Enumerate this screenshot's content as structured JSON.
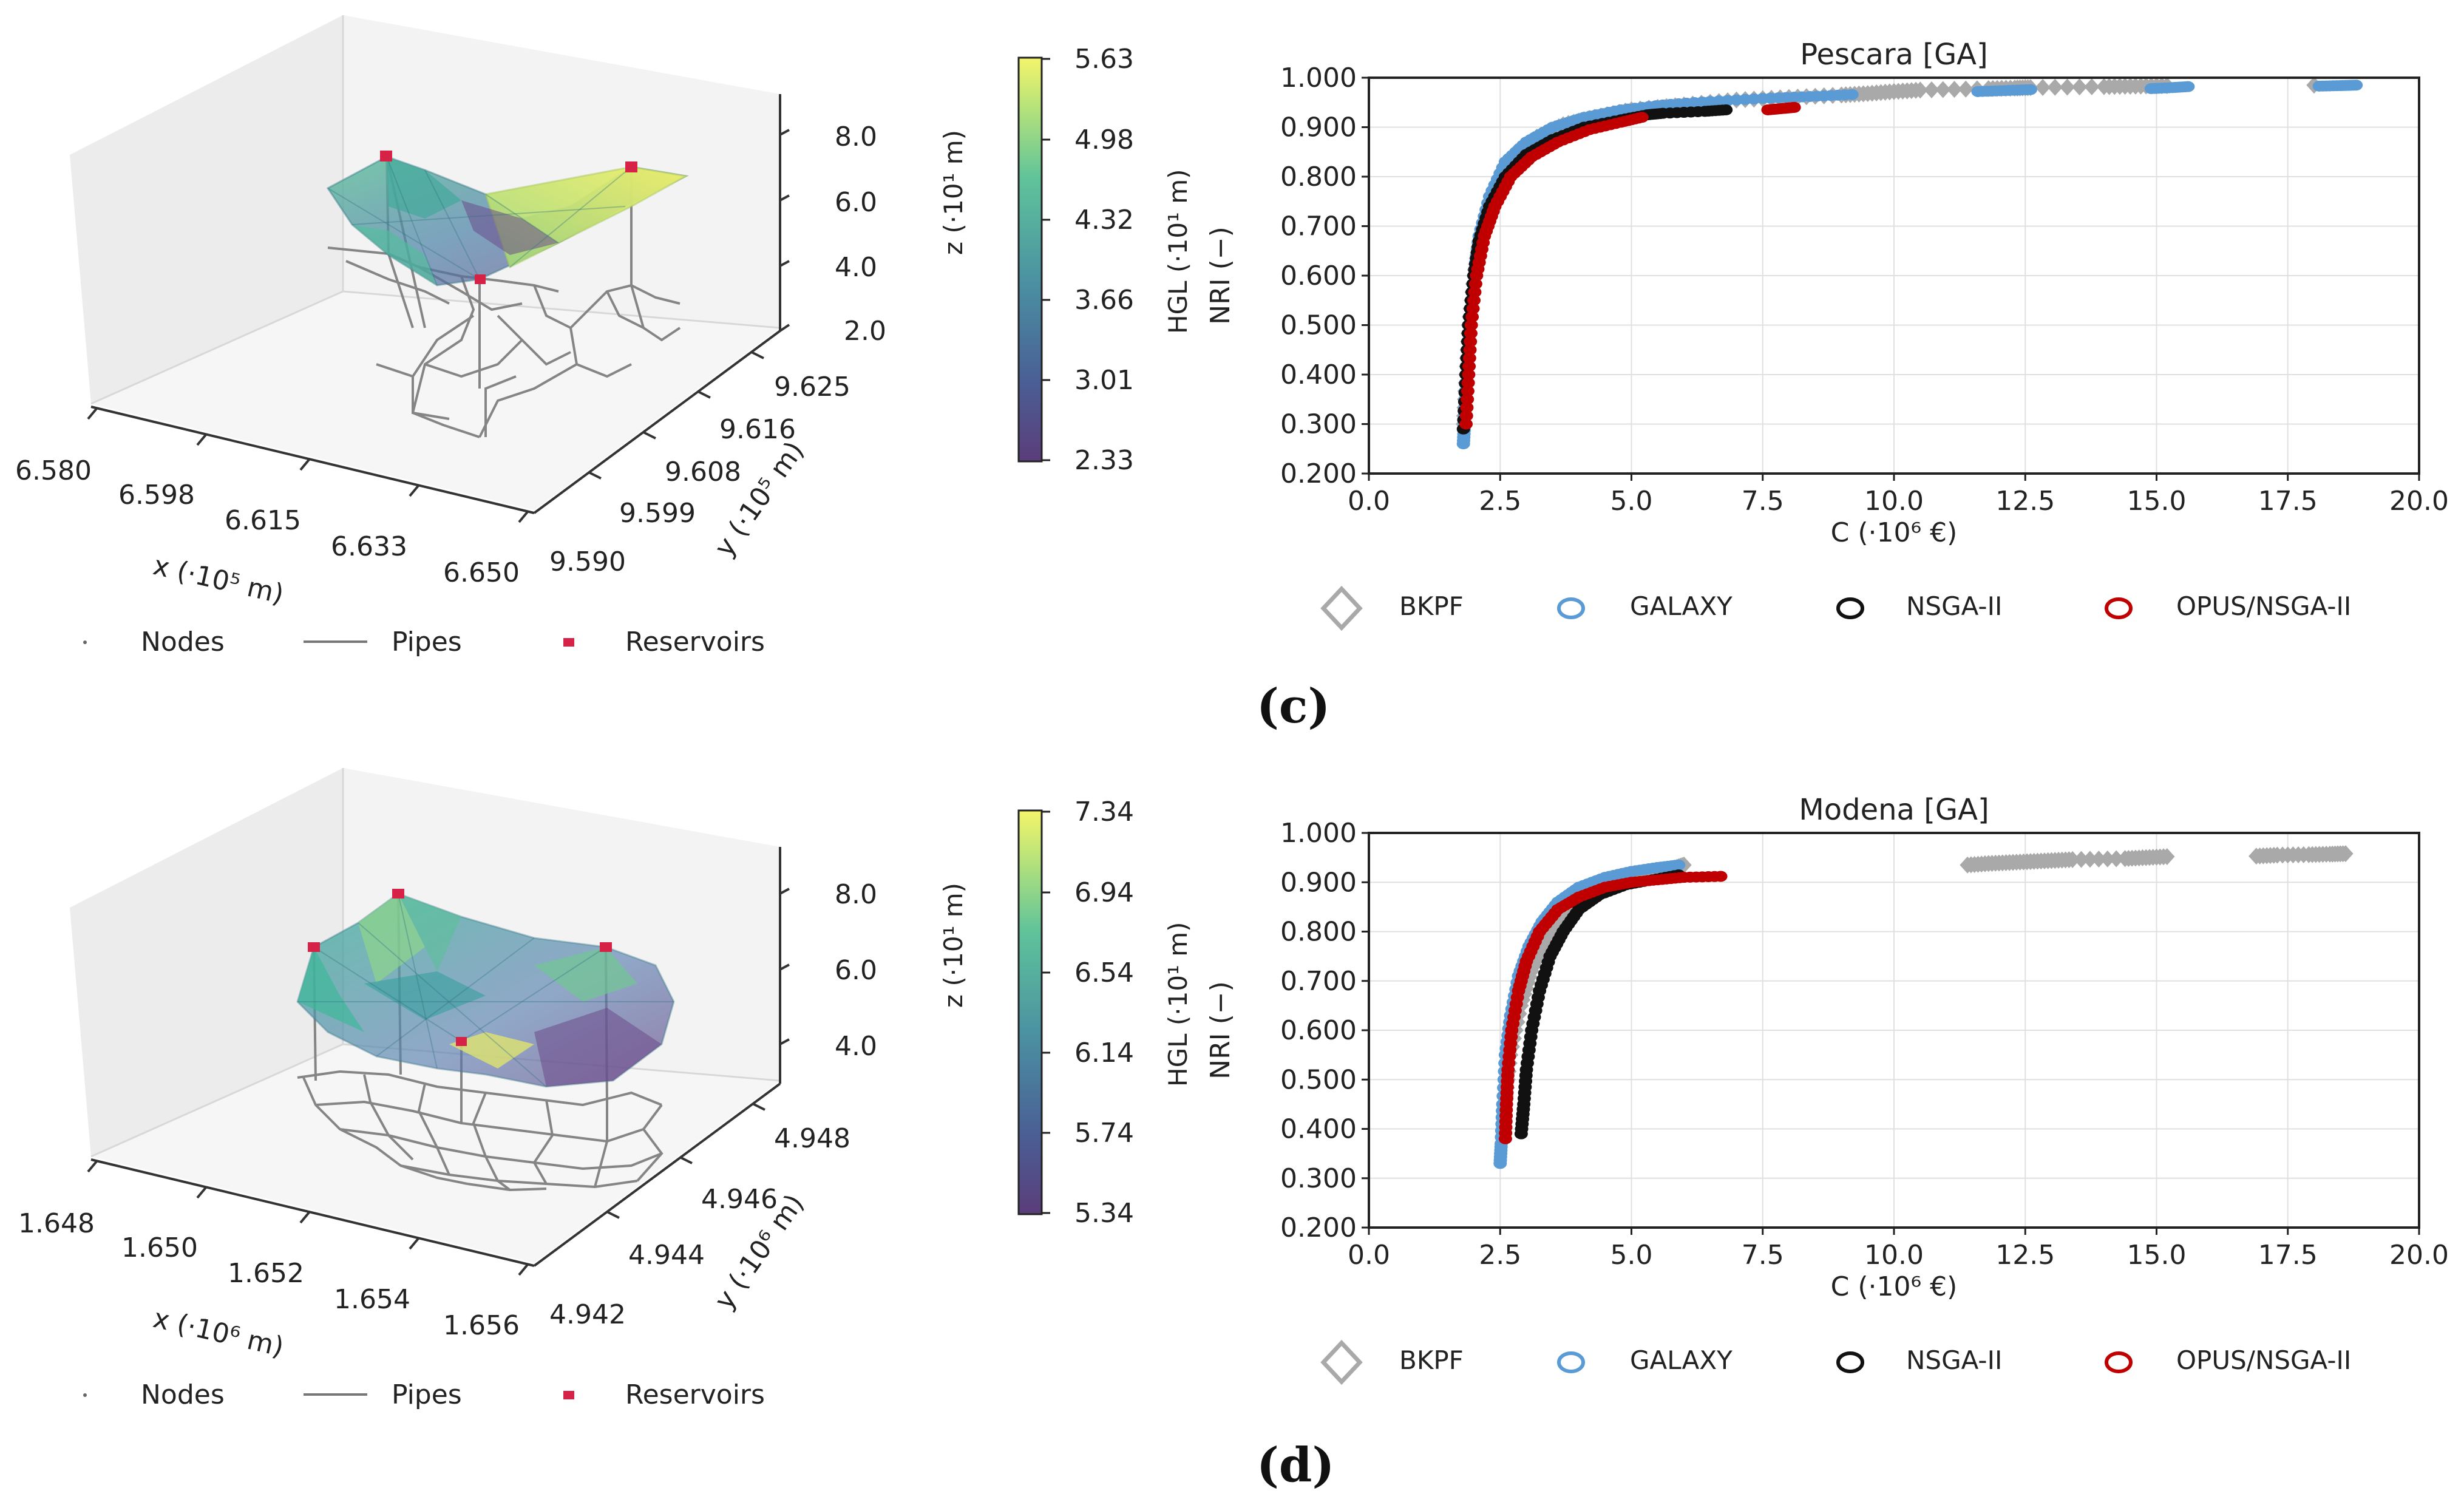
{
  "colors": {
    "bkpf": "#a9a9a9",
    "galaxy": "#5b9bd5",
    "nsga": "#111111",
    "opus": "#c00000",
    "reservoir": "#d62246",
    "pipe": "#808080",
    "viridis_low": "#44306e",
    "viridis_mid": "#21918c",
    "viridis_high": "#f4f46a"
  },
  "legend_3d": {
    "nodes": "Nodes",
    "pipes": "Pipes",
    "reservoirs": "Reservoirs"
  },
  "legend_pareto": {
    "bkpf": "BKPF",
    "galaxy": "GALAXY",
    "nsga": "NSGA-II",
    "opus": "OPUS/NSGA-II"
  },
  "top": {
    "panel_label": "(c)",
    "network": {
      "x_label": "x (·10⁵ m)",
      "y_label": "y (·10⁵ m)",
      "z_label": "z (·10¹ m)",
      "x_ticks": [
        "6.580",
        "6.598",
        "6.615",
        "6.633",
        "6.650"
      ],
      "y_ticks": [
        "9.590",
        "9.599",
        "9.608",
        "9.616",
        "9.625"
      ],
      "z_ticks": [
        "2.0",
        "4.0",
        "6.0",
        "8.0"
      ]
    },
    "colorbar": {
      "label": "HGL (·10¹ m)",
      "ticks": [
        "5.63",
        "4.98",
        "4.32",
        "3.66",
        "3.01",
        "2.33"
      ]
    }
  },
  "bottom": {
    "panel_label": "(d)",
    "network": {
      "x_label": "x (·10⁶ m)",
      "y_label": "y (·10⁶ m)",
      "z_label": "z (·10¹ m)",
      "x_ticks": [
        "1.648",
        "1.650",
        "1.652",
        "1.654",
        "1.656"
      ],
      "y_ticks": [
        "4.942",
        "4.944",
        "4.946",
        "4.948"
      ],
      "z_ticks": [
        "4.0",
        "6.0",
        "8.0"
      ]
    },
    "colorbar": {
      "label": "HGL (·10¹ m)",
      "ticks": [
        "7.34",
        "6.94",
        "6.54",
        "6.14",
        "5.74",
        "5.34"
      ]
    }
  },
  "chart_data": [
    {
      "type": "scatter",
      "title": "Pescara [GA]",
      "xlabel": "C (·10⁶ €)",
      "ylabel": "NRI (−)",
      "xlim": [
        0,
        20
      ],
      "ylim": [
        0.2,
        1.0
      ],
      "x_ticks": [
        "0.0",
        "2.5",
        "5.0",
        "7.5",
        "10.0",
        "12.5",
        "15.0",
        "17.5",
        "20.0"
      ],
      "y_ticks": [
        "0.200",
        "0.300",
        "0.400",
        "0.500",
        "0.600",
        "0.700",
        "0.800",
        "0.900",
        "1.000"
      ],
      "grid": true,
      "series": [
        {
          "name": "BKPF",
          "x": [
            1.8,
            1.85,
            1.9,
            2.0,
            2.1,
            2.3,
            2.5,
            2.8,
            3.2,
            3.7,
            4.3,
            5.0,
            6.0,
            7.0,
            8.0,
            9.0,
            9.5,
            10.0,
            10.5,
            11.8,
            12.3,
            12.6,
            14.0,
            14.6,
            15.2,
            18.0
          ],
          "y": [
            0.3,
            0.4,
            0.5,
            0.6,
            0.67,
            0.75,
            0.8,
            0.85,
            0.88,
            0.905,
            0.92,
            0.935,
            0.945,
            0.955,
            0.96,
            0.965,
            0.968,
            0.972,
            0.975,
            0.978,
            0.979,
            0.98,
            0.982,
            0.983,
            0.984,
            0.985
          ]
        },
        {
          "name": "GALAXY",
          "x": [
            1.8,
            1.82,
            1.85,
            1.9,
            2.0,
            2.1,
            2.3,
            2.6,
            3.0,
            3.5,
            4.1,
            4.8,
            5.6,
            6.5,
            7.5,
            8.4,
            9.2,
            11.6,
            12.1,
            12.6,
            14.9,
            15.3,
            15.6,
            18.1,
            18.5,
            18.8
          ],
          "y": [
            0.26,
            0.3,
            0.4,
            0.5,
            0.6,
            0.68,
            0.76,
            0.83,
            0.87,
            0.9,
            0.92,
            0.935,
            0.945,
            0.952,
            0.958,
            0.962,
            0.966,
            0.972,
            0.974,
            0.976,
            0.978,
            0.98,
            0.982,
            0.983,
            0.984,
            0.985
          ]
        },
        {
          "name": "NSGA-II",
          "x": [
            1.8,
            1.85,
            1.9,
            2.0,
            2.1,
            2.3,
            2.6,
            3.0,
            3.5,
            4.1,
            4.8,
            5.3,
            5.6,
            6.4,
            6.8
          ],
          "y": [
            0.29,
            0.4,
            0.5,
            0.6,
            0.67,
            0.74,
            0.8,
            0.845,
            0.875,
            0.9,
            0.915,
            0.925,
            0.928,
            0.932,
            0.935
          ]
        },
        {
          "name": "OPUS/NSGA-II",
          "x": [
            1.85,
            1.9,
            1.95,
            2.05,
            2.2,
            2.4,
            2.7,
            3.1,
            3.6,
            4.2,
            4.8,
            5.2,
            7.6,
            7.9,
            8.1
          ],
          "y": [
            0.3,
            0.4,
            0.5,
            0.6,
            0.68,
            0.74,
            0.8,
            0.84,
            0.87,
            0.895,
            0.91,
            0.92,
            0.935,
            0.938,
            0.94
          ]
        }
      ]
    },
    {
      "type": "scatter",
      "title": "Modena [GA]",
      "xlabel": "C (·10⁶ €)",
      "ylabel": "NRI (−)",
      "xlim": [
        0,
        20
      ],
      "ylim": [
        0.2,
        1.0
      ],
      "x_ticks": [
        "0.0",
        "2.5",
        "5.0",
        "7.5",
        "10.0",
        "12.5",
        "15.0",
        "17.5",
        "20.0"
      ],
      "y_ticks": [
        "0.200",
        "0.300",
        "0.400",
        "0.500",
        "0.600",
        "0.700",
        "0.800",
        "0.900",
        "1.000"
      ],
      "grid": true,
      "series": [
        {
          "name": "BKPF",
          "x": [
            2.55,
            2.6,
            2.7,
            2.9,
            3.1,
            3.4,
            3.8,
            4.3,
            4.8,
            5.3,
            5.8,
            6.0,
            11.4,
            11.8,
            12.2,
            12.6,
            13.0,
            13.4,
            14.4,
            14.8,
            15.2,
            16.9,
            17.3,
            17.9,
            18.3,
            18.6
          ],
          "y": [
            0.38,
            0.45,
            0.55,
            0.65,
            0.72,
            0.79,
            0.84,
            0.875,
            0.9,
            0.915,
            0.928,
            0.935,
            0.935,
            0.938,
            0.94,
            0.942,
            0.944,
            0.946,
            0.948,
            0.95,
            0.952,
            0.953,
            0.955,
            0.956,
            0.957,
            0.958
          ]
        },
        {
          "name": "GALAXY",
          "x": [
            2.5,
            2.52,
            2.55,
            2.6,
            2.7,
            2.85,
            3.05,
            3.3,
            3.6,
            4.0,
            4.5,
            5.0,
            5.5,
            5.9
          ],
          "y": [
            0.33,
            0.37,
            0.45,
            0.55,
            0.63,
            0.71,
            0.77,
            0.82,
            0.86,
            0.89,
            0.91,
            0.922,
            0.93,
            0.935
          ]
        },
        {
          "name": "NSGA-II",
          "x": [
            2.9,
            2.95,
            3.0,
            3.1,
            3.25,
            3.45,
            3.7,
            4.0,
            4.4,
            4.9,
            5.4,
            5.9
          ],
          "y": [
            0.39,
            0.45,
            0.52,
            0.6,
            0.68,
            0.75,
            0.8,
            0.845,
            0.875,
            0.895,
            0.905,
            0.915
          ]
        },
        {
          "name": "OPUS/NSGA-II",
          "x": [
            2.6,
            2.62,
            2.65,
            2.72,
            2.85,
            3.0,
            3.25,
            3.6,
            4.0,
            4.5,
            5.0,
            5.5,
            6.0,
            6.7
          ],
          "y": [
            0.38,
            0.45,
            0.52,
            0.6,
            0.68,
            0.74,
            0.8,
            0.845,
            0.87,
            0.89,
            0.9,
            0.905,
            0.91,
            0.912
          ]
        }
      ]
    }
  ]
}
